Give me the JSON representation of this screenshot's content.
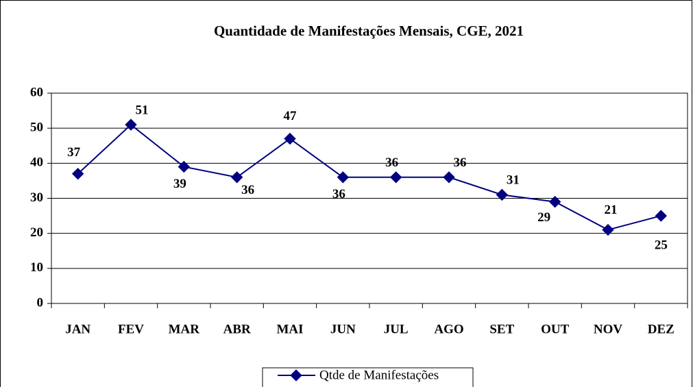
{
  "chart_data": {
    "type": "line",
    "title": "Quantidade de Manifestações Mensais, CGE, 2021",
    "categories": [
      "JAN",
      "FEV",
      "MAR",
      "ABR",
      "MAI",
      "JUN",
      "JUL",
      "AGO",
      "SET",
      "OUT",
      "NOV",
      "DEZ"
    ],
    "series": [
      {
        "name": "Qtde de Manifestações",
        "color": "#000080",
        "values": [
          37,
          51,
          39,
          36,
          47,
          36,
          36,
          36,
          31,
          29,
          21,
          25
        ]
      }
    ],
    "ylim": [
      0,
      60
    ],
    "yticks": [
      0,
      10,
      20,
      30,
      40,
      50,
      60
    ],
    "grid": true,
    "legend": "bottom"
  }
}
